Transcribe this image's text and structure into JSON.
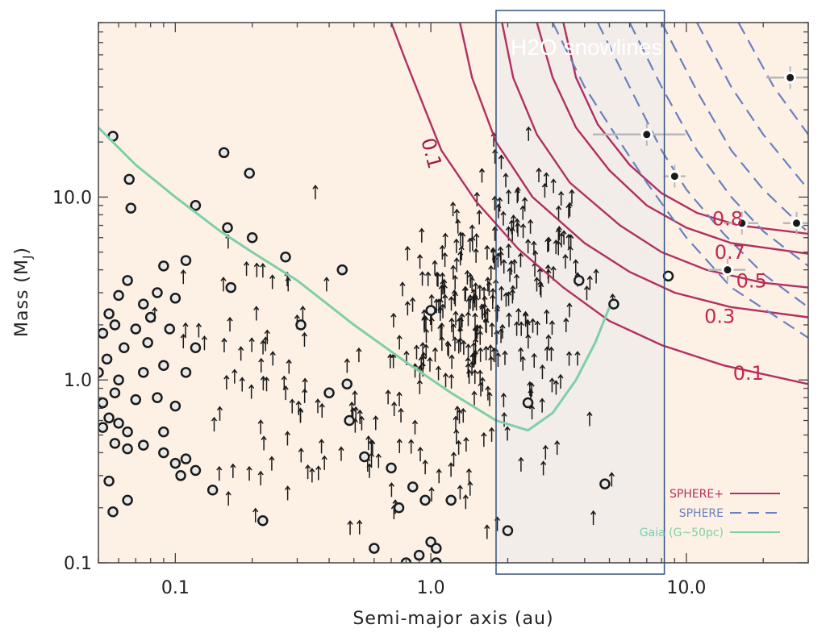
{
  "chart_data": {
    "type": "scatter",
    "xlabel": "Semi-major axis (au)",
    "ylabel_main": "Mass (M",
    "ylabel_sub": "J",
    "ylabel_close": ")",
    "x_scale": "log",
    "y_scale": "log",
    "xlim": [
      0.05,
      30
    ],
    "ylim": [
      0.1,
      90
    ],
    "x_ticks": [
      {
        "value": 0.1,
        "label": "0.1"
      },
      {
        "value": 1.0,
        "label": "1.0"
      },
      {
        "value": 10.0,
        "label": "10.0"
      }
    ],
    "y_ticks": [
      {
        "value": 0.1,
        "label": "0.1"
      },
      {
        "value": 1.0,
        "label": "1.0"
      },
      {
        "value": 10.0,
        "label": "10.0"
      }
    ],
    "region": {
      "label": "H2O snowlines",
      "x_range": [
        1.8,
        8.2
      ]
    },
    "contour_labels": [
      {
        "text": "0.1",
        "x": 0.95,
        "y": 17,
        "color": "#a01848",
        "rotate": 75
      },
      {
        "text": "0.8",
        "x": 14.5,
        "y": 7.0,
        "color": "#c02850",
        "rotate": 0
      },
      {
        "text": "0.7",
        "x": 14.8,
        "y": 4.6,
        "color": "#c02850",
        "rotate": 0
      },
      {
        "text": "0.5",
        "x": 18.0,
        "y": 3.2,
        "color": "#c02850",
        "rotate": 0
      },
      {
        "text": "0.3",
        "x": 13.5,
        "y": 2.05,
        "color": "#c02850",
        "rotate": 0
      },
      {
        "text": "0.1",
        "x": 17.5,
        "y": 1.0,
        "color": "#c02850",
        "rotate": 0
      }
    ],
    "series": [
      {
        "name": "SPHERE+",
        "style": "solid",
        "color": "#b03060",
        "curves": [
          {
            "level": "0.1",
            "x": [
              0.7,
              0.8,
              0.95,
              1.1,
              1.5,
              2.2,
              3.3,
              5.0,
              8.0,
              14,
              30
            ],
            "y": [
              90,
              55,
              30,
              18,
              9.5,
              5.2,
              3.2,
              2.1,
              1.55,
              1.2,
              0.95
            ]
          },
          {
            "level": "0.3",
            "x": [
              1.3,
              1.45,
              1.8,
              2.5,
              4,
              6,
              9,
              15,
              30
            ],
            "y": [
              90,
              45,
              20,
              10,
              5.6,
              3.9,
              3.0,
              2.5,
              2.2
            ]
          },
          {
            "level": "0.5",
            "x": [
              1.9,
              2.1,
              2.6,
              3.5,
              5.5,
              8,
              12,
              20,
              30
            ],
            "y": [
              90,
              45,
              22,
              12,
              7.0,
              5.0,
              4.0,
              3.4,
              3.2
            ]
          },
          {
            "level": "0.7",
            "x": [
              2.6,
              3.0,
              3.7,
              5,
              7,
              10,
              15,
              30
            ],
            "y": [
              90,
              45,
              24,
              14,
              9.0,
              6.8,
              5.6,
              4.9
            ]
          },
          {
            "level": "0.8",
            "x": [
              3.3,
              3.7,
              4.5,
              6,
              8,
              11,
              16,
              30
            ],
            "y": [
              90,
              45,
              25,
              15,
              10.5,
              8.2,
              7.0,
              6.3
            ]
          }
        ]
      },
      {
        "name": "SPHERE",
        "style": "dashed",
        "color": "#6a80c0",
        "curves": [
          {
            "x": [
              3.0,
              4.0,
              5.5,
              7.0,
              10,
              15,
              30
            ],
            "y": [
              90,
              40,
              20,
              12,
              6.0,
              3.2,
              1.7
            ]
          },
          {
            "x": [
              4.5,
              6.0,
              8.0,
              10,
              14,
              20,
              30
            ],
            "y": [
              90,
              40,
              18,
              11,
              6.3,
              3.8,
              2.5
            ]
          },
          {
            "x": [
              6.0,
              8.0,
              11,
              15,
              20,
              30
            ],
            "y": [
              90,
              40,
              18,
              10,
              6.5,
              4.2
            ]
          },
          {
            "x": [
              8.0,
              11,
              15,
              20,
              30
            ],
            "y": [
              90,
              38,
              18,
              11,
              6.4
            ]
          },
          {
            "x": [
              11,
              15,
              20,
              30
            ],
            "y": [
              90,
              40,
              22,
              11
            ]
          },
          {
            "x": [
              16,
              22,
              30
            ],
            "y": [
              90,
              40,
              22
            ]
          }
        ]
      },
      {
        "name": "Gaia (G~50pc)",
        "style": "solid",
        "color": "#7ecfa8",
        "x": [
          0.05,
          0.07,
          0.1,
          0.15,
          0.2,
          0.3,
          0.5,
          0.8,
          1.2,
          1.8,
          2.4,
          3.0,
          3.7,
          4.4,
          5.0
        ],
        "y": [
          24,
          15,
          10,
          6.5,
          5.0,
          3.5,
          2.0,
          1.25,
          0.85,
          0.6,
          0.53,
          0.66,
          1.0,
          1.6,
          2.5
        ]
      }
    ],
    "legend": {
      "position": "bottom-right",
      "entries": [
        "SPHERE+",
        "SPHERE",
        "Gaia (G~50pc)"
      ]
    },
    "detected_planets": [
      {
        "x": 0.057,
        "y": 21.5
      },
      {
        "x": 0.066,
        "y": 12.5
      },
      {
        "x": 0.067,
        "y": 8.7
      },
      {
        "x": 0.12,
        "y": 9.0
      },
      {
        "x": 0.16,
        "y": 6.8
      },
      {
        "x": 0.2,
        "y": 6.0
      },
      {
        "x": 0.155,
        "y": 17.5
      },
      {
        "x": 0.195,
        "y": 13.5
      },
      {
        "x": 0.27,
        "y": 4.7
      },
      {
        "x": 0.165,
        "y": 3.2
      },
      {
        "x": 0.31,
        "y": 2.0
      },
      {
        "x": 0.09,
        "y": 4.2
      },
      {
        "x": 0.11,
        "y": 4.5
      },
      {
        "x": 0.1,
        "y": 2.8
      },
      {
        "x": 0.085,
        "y": 3.0
      },
      {
        "x": 0.075,
        "y": 2.6
      },
      {
        "x": 0.065,
        "y": 3.5
      },
      {
        "x": 0.06,
        "y": 2.9
      },
      {
        "x": 0.055,
        "y": 2.3
      },
      {
        "x": 0.058,
        "y": 2.0
      },
      {
        "x": 0.052,
        "y": 1.8
      },
      {
        "x": 0.07,
        "y": 1.9
      },
      {
        "x": 0.08,
        "y": 2.2
      },
      {
        "x": 0.095,
        "y": 1.9
      },
      {
        "x": 0.12,
        "y": 1.5
      },
      {
        "x": 0.078,
        "y": 1.6
      },
      {
        "x": 0.063,
        "y": 1.5
      },
      {
        "x": 0.054,
        "y": 1.3
      },
      {
        "x": 0.05,
        "y": 1.1
      },
      {
        "x": 0.06,
        "y": 1.0
      },
      {
        "x": 0.075,
        "y": 1.1
      },
      {
        "x": 0.09,
        "y": 1.2
      },
      {
        "x": 0.11,
        "y": 1.1
      },
      {
        "x": 0.058,
        "y": 0.85
      },
      {
        "x": 0.07,
        "y": 0.78
      },
      {
        "x": 0.085,
        "y": 0.8
      },
      {
        "x": 0.1,
        "y": 0.72
      },
      {
        "x": 0.052,
        "y": 0.75
      },
      {
        "x": 0.055,
        "y": 0.62
      },
      {
        "x": 0.052,
        "y": 0.55
      },
      {
        "x": 0.06,
        "y": 0.58
      },
      {
        "x": 0.065,
        "y": 0.52
      },
      {
        "x": 0.058,
        "y": 0.45
      },
      {
        "x": 0.065,
        "y": 0.42
      },
      {
        "x": 0.075,
        "y": 0.44
      },
      {
        "x": 0.09,
        "y": 0.52
      },
      {
        "x": 0.09,
        "y": 0.4
      },
      {
        "x": 0.1,
        "y": 0.35
      },
      {
        "x": 0.11,
        "y": 0.37
      },
      {
        "x": 0.12,
        "y": 0.32
      },
      {
        "x": 0.105,
        "y": 0.3
      },
      {
        "x": 0.055,
        "y": 0.28
      },
      {
        "x": 0.065,
        "y": 0.22
      },
      {
        "x": 0.057,
        "y": 0.19
      },
      {
        "x": 0.14,
        "y": 0.25
      },
      {
        "x": 0.22,
        "y": 0.17
      },
      {
        "x": 0.45,
        "y": 4.0
      },
      {
        "x": 0.47,
        "y": 0.95
      },
      {
        "x": 0.4,
        "y": 0.85
      },
      {
        "x": 0.48,
        "y": 0.6
      },
      {
        "x": 0.55,
        "y": 0.38
      },
      {
        "x": 0.7,
        "y": 0.33
      },
      {
        "x": 0.75,
        "y": 0.2
      },
      {
        "x": 0.85,
        "y": 0.26
      },
      {
        "x": 0.95,
        "y": 0.22
      },
      {
        "x": 0.6,
        "y": 0.12
      },
      {
        "x": 0.9,
        "y": 0.11
      },
      {
        "x": 1.0,
        "y": 0.13
      },
      {
        "x": 1.05,
        "y": 0.12
      },
      {
        "x": 1.05,
        "y": 0.1
      },
      {
        "x": 1.2,
        "y": 0.22
      },
      {
        "x": 0.8,
        "y": 0.1
      },
      {
        "x": 1.0,
        "y": 2.4
      },
      {
        "x": 2.0,
        "y": 0.15
      },
      {
        "x": 2.4,
        "y": 0.75
      },
      {
        "x": 3.8,
        "y": 3.5
      },
      {
        "x": 4.8,
        "y": 0.27
      },
      {
        "x": 5.2,
        "y": 2.6
      }
    ],
    "direct_imaging_planets": [
      {
        "x": 25.5,
        "y": 45,
        "xerr": 4
      },
      {
        "x": 7.0,
        "y": 22,
        "xerr": 2.5
      },
      {
        "x": 9.0,
        "y": 13,
        "xerr": 0.5
      },
      {
        "x": 16.5,
        "y": 7.2,
        "xerr": 1.8
      },
      {
        "x": 27,
        "y": 7.2,
        "xerr": 2.0
      },
      {
        "x": 14.5,
        "y": 4.0,
        "xerr": 1.8
      }
    ],
    "single_point": {
      "x": 8.5,
      "y": 3.7
    },
    "lower_limit_count": 400
  }
}
